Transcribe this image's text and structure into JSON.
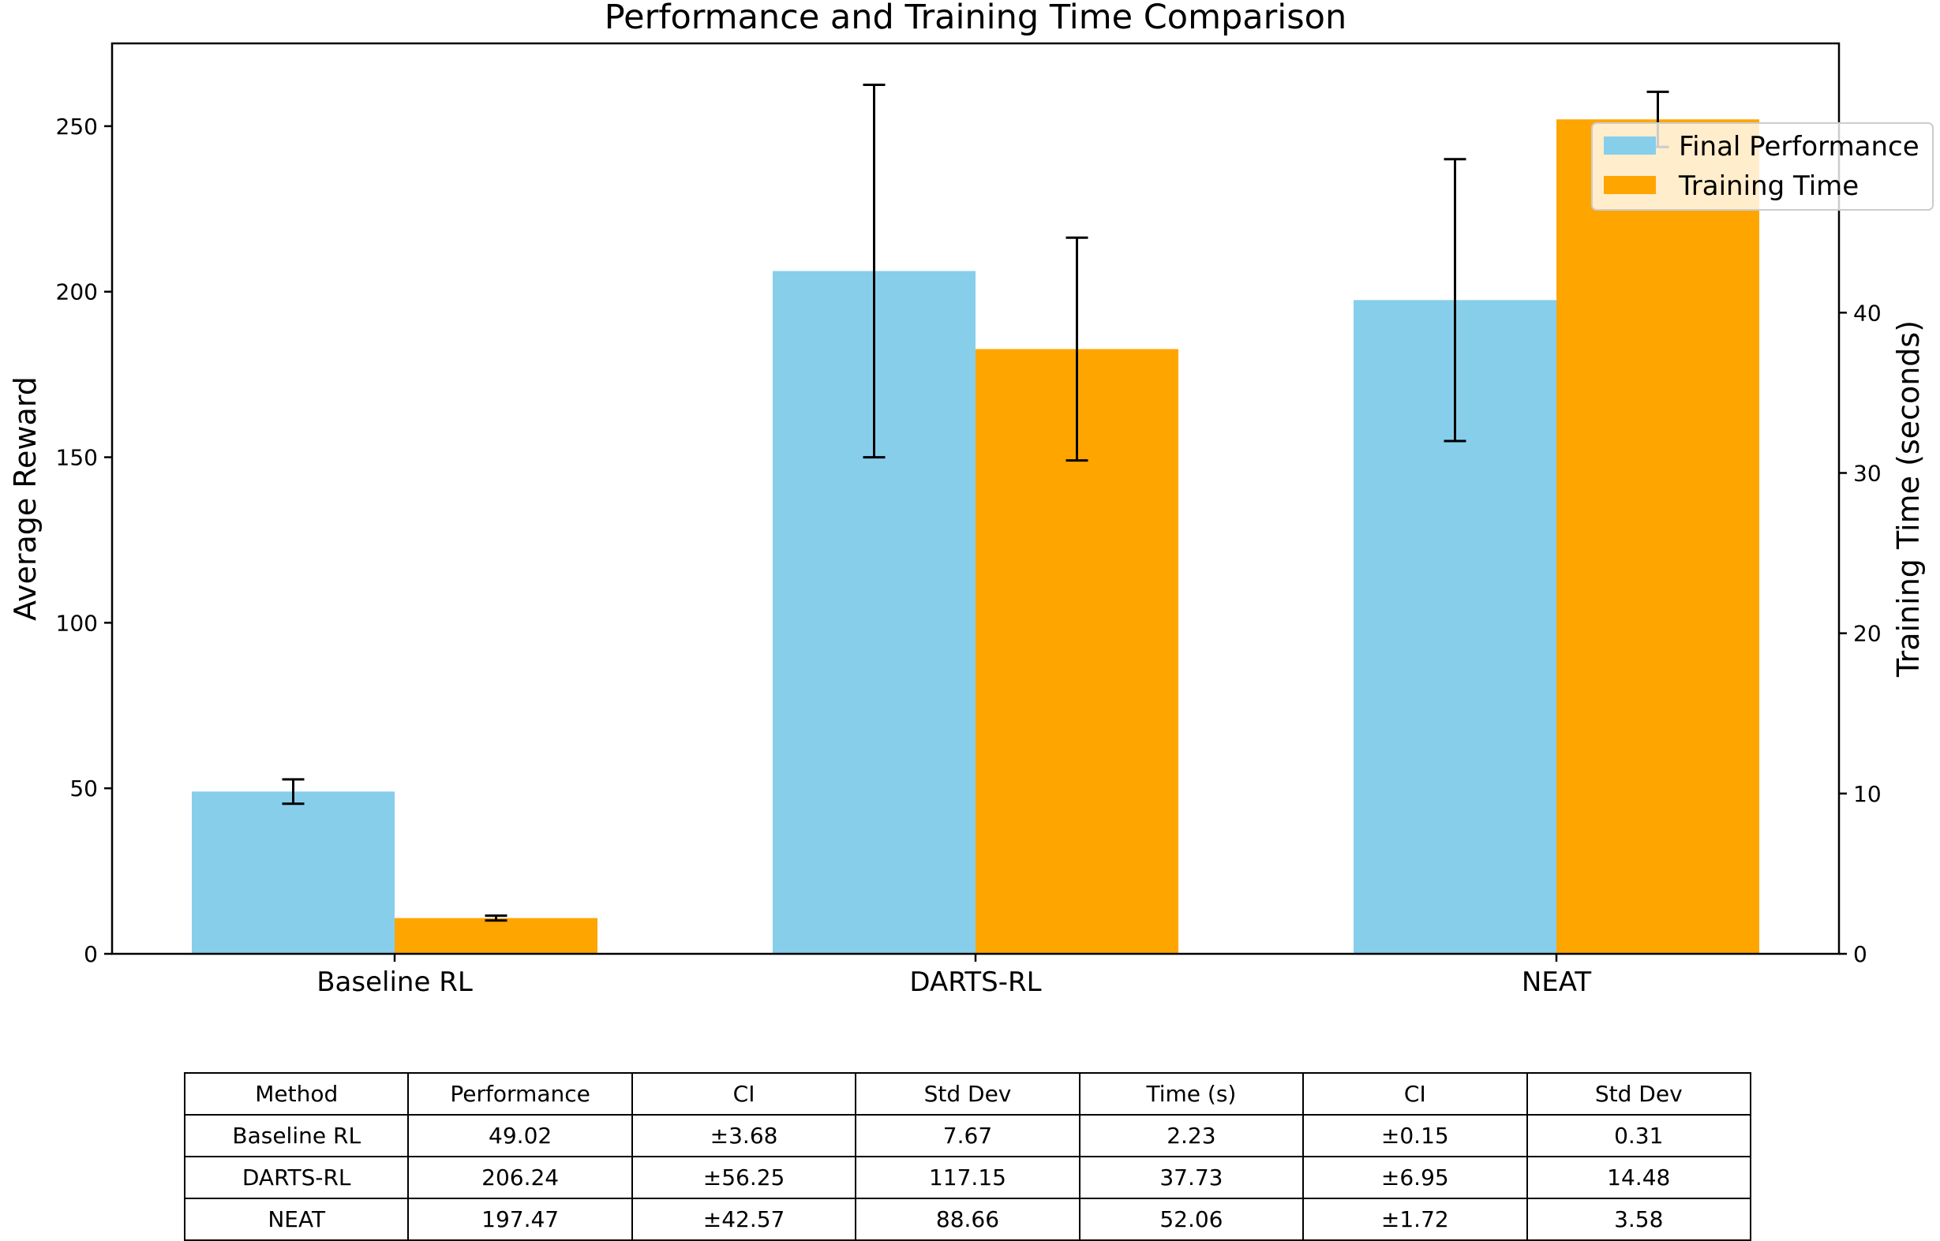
{
  "chart_data": {
    "type": "bar",
    "title": "Performance and Training Time Comparison",
    "categories": [
      "Baseline RL",
      "DARTS-RL",
      "NEAT"
    ],
    "ylabel": "Average Reward",
    "y2label": "Training Time (seconds)",
    "ylim": [
      0,
      275
    ],
    "y2lim": [
      0,
      56.8
    ],
    "yticks": [
      0,
      50,
      100,
      150,
      200,
      250
    ],
    "y2ticks": [
      0,
      10,
      20,
      30,
      40
    ],
    "legend_position": "top-right",
    "series": [
      {
        "name": "Final Performance",
        "axis": "left",
        "color": "#87ceeb",
        "values": [
          49.02,
          206.24,
          197.47
        ],
        "ci": [
          3.68,
          56.25,
          42.57
        ]
      },
      {
        "name": "Training Time",
        "axis": "right",
        "color": "#ffa500",
        "values": [
          2.23,
          37.73,
          52.06
        ],
        "ci": [
          0.15,
          6.95,
          1.72
        ]
      }
    ]
  },
  "table": {
    "headers": [
      "Method",
      "Performance",
      "CI",
      "Std Dev",
      "Time (s)",
      "CI",
      "Std Dev"
    ],
    "rows": [
      [
        "Baseline RL",
        "49.02",
        "±3.68",
        "7.67",
        "2.23",
        "±0.15",
        "0.31"
      ],
      [
        "DARTS-RL",
        "206.24",
        "±56.25",
        "117.15",
        "37.73",
        "±6.95",
        "14.48"
      ],
      [
        "NEAT",
        "197.47",
        "±42.57",
        "88.66",
        "52.06",
        "±1.72",
        "3.58"
      ]
    ]
  }
}
